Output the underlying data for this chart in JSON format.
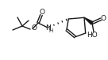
{
  "bg_color": "#ffffff",
  "line_color": "#1a1a1a",
  "lw": 1.0,
  "fs": 6.5,
  "figsize": [
    1.36,
    0.76
  ],
  "dpi": 100,
  "xlim": [
    0,
    136
  ],
  "ylim": [
    0,
    76
  ]
}
